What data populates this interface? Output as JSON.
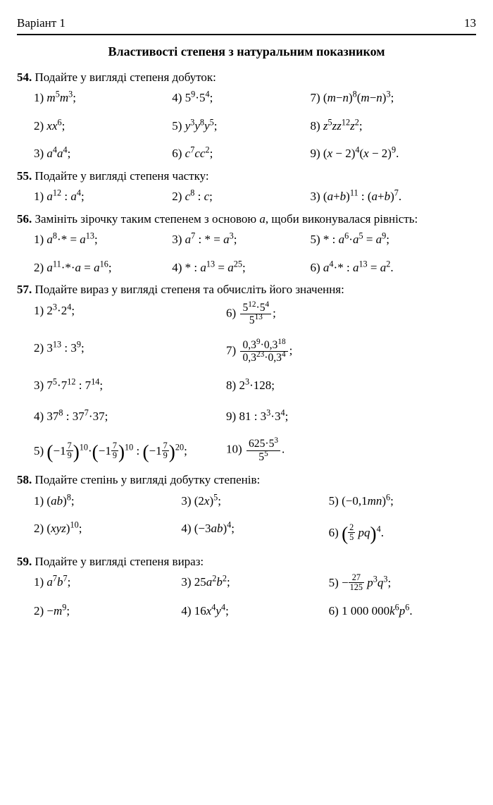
{
  "page": {
    "variant": "Варіант 1",
    "pageNumber": "13"
  },
  "title": "Властивості степеня з натуральним показником",
  "p54": {
    "num": "54.",
    "text": "Подайте у вигляді степеня добуток:",
    "items": {
      "1": "1) <i>m</i><sup>5</sup><i>m</i><sup>3</sup>;",
      "2": "2) <i>xx</i><sup>6</sup>;",
      "3": "3) <i>a</i><sup>4</sup><i>a</i><sup>4</sup>;",
      "4": "4) 5<sup>9</sup>·5<sup>4</sup>;",
      "5": "5) <i>y</i><sup>3</sup><i>y</i><sup>8</sup><i>y</i><sup>5</sup>;",
      "6": "6) <i>c</i><sup>7</sup><i>cc</i><sup>2</sup>;",
      "7": "7) (<i>m</i>−<i>n</i>)<sup>8</sup>(<i>m</i>−<i>n</i>)<sup>3</sup>;",
      "8": "8) <i>z</i><sup>5</sup><i>zz</i><sup>12</sup><i>z</i><sup>2</sup>;",
      "9": "9) (<i>x</i> − 2)<sup>4</sup>(<i>x</i> − 2)<sup>9</sup>."
    }
  },
  "p55": {
    "num": "55.",
    "text": "Подайте у вигляді степеня частку:",
    "items": {
      "1": "1) <i>a</i><sup>12</sup> : <i>a</i><sup>4</sup>;",
      "2": "2) <i>c</i><sup>8</sup> : <i>c</i>;",
      "3": "3) (<i>a</i>+<i>b</i>)<sup>11</sup> : (<i>a</i>+<i>b</i>)<sup>7</sup>."
    }
  },
  "p56": {
    "num": "56.",
    "text": "Замініть зірочку таким степенем з основою <i>a</i>, щоби виконувалася рівність:",
    "items": {
      "1": "1) <i>a</i><sup>8</sup>·* = <i>a</i><sup>13</sup>;",
      "2": "2) <i>a</i><sup>11</sup>·*·<i>a</i> = <i>a</i><sup>16</sup>;",
      "3": "3) <i>a</i><sup>7</sup> : * = <i>a</i><sup>3</sup>;",
      "4": "4) * : <i>a</i><sup>13</sup> = <i>a</i><sup>25</sup>;",
      "5": "5) * : <i>a</i><sup>6</sup>·<i>a</i><sup>5</sup> = <i>a</i><sup>9</sup>;",
      "6": "6) <i>a</i><sup>4</sup>·* : <i>a</i><sup>13</sup> = <i>a</i><sup>2</sup>."
    }
  },
  "p57": {
    "num": "57.",
    "text": "Подайте вираз у вигляді степеня та обчисліть його значення:",
    "items": {
      "1": "1) 2<sup>3</sup>·2<sup>4</sup>;",
      "2": "2) 3<sup>13</sup> : 3<sup>9</sup>;",
      "3": "3) 7<sup>5</sup>·7<sup>12</sup> : 7<sup>14</sup>;",
      "4": "4) 37<sup>8</sup> : 37<sup>7</sup>·37;",
      "5": "5) <span class=\"lparen-big\">(</span>−1<span class=\"mfrac\"><span class=\"num\">7</span><span class=\"den\">9</span></span><span class=\"rparen-big\">)</span><sup>10</sup>·<span class=\"lparen-big\">(</span>−1<span class=\"mfrac\"><span class=\"num\">7</span><span class=\"den\">9</span></span><span class=\"rparen-big\">)</span><sup>10</sup> : <span class=\"lparen-big\">(</span>−1<span class=\"mfrac\"><span class=\"num\">7</span><span class=\"den\">9</span></span><span class=\"rparen-big\">)</span><sup>20</sup>;",
      "6": "6) <span class=\"frac\"><span class=\"num\">5<sup>12</sup>·5<sup>4</sup></span><span class=\"den\">5<sup>13</sup></span></span>;",
      "7": "7) <span class=\"frac\"><span class=\"num\">0,3<sup>9</sup>·0,3<sup>18</sup></span><span class=\"den\">0,3<sup>23</sup>·0,3<sup>4</sup></span></span>;",
      "8": "8) 2<sup>3</sup>·128;",
      "9": "9) 81 : 3<sup>3</sup>·3<sup>4</sup>;",
      "10": "10) <span class=\"frac\"><span class=\"num\">625·5<sup>3</sup></span><span class=\"den\">5<sup>5</sup></span></span>."
    }
  },
  "p58": {
    "num": "58.",
    "text": "Подайте степінь у вигляді добутку степенів:",
    "items": {
      "1": "1) (<i>ab</i>)<sup>8</sup>;",
      "2": "2) (<i>xyz</i>)<sup>10</sup>;",
      "3": "3) (2<i>x</i>)<sup>5</sup>;",
      "4": "4) (−3<i>ab</i>)<sup>4</sup>;",
      "5": "5) (−0,1<i>mn</i>)<sup>6</sup>;",
      "6": "6) <span class=\"lparen-big\">(</span><span class=\"mfrac\"><span class=\"num\">2</span><span class=\"den\">5</span></span> <i>pq</i><span class=\"rparen-big\">)</span><sup>4</sup>."
    }
  },
  "p59": {
    "num": "59.",
    "text": "Подайте у вигляді степеня вираз:",
    "items": {
      "1": "1) <i>a</i><sup>7</sup><i>b</i><sup>7</sup>;",
      "2": "2) −<i>m</i><sup>9</sup>;",
      "3": "3) 25<i>a</i><sup>2</sup><i>b</i><sup>2</sup>;",
      "4": "4) 16<i>x</i><sup>4</sup><i>y</i><sup>4</sup>;",
      "5": "5) −<span class=\"mfrac\"><span class=\"num\">27</span><span class=\"den\">125</span></span> <i>p</i><sup>3</sup><i>q</i><sup>3</sup>;",
      "6": "6) 1 000 000<i>k</i><sup>6</sup><i>p</i><sup>6</sup>."
    }
  }
}
